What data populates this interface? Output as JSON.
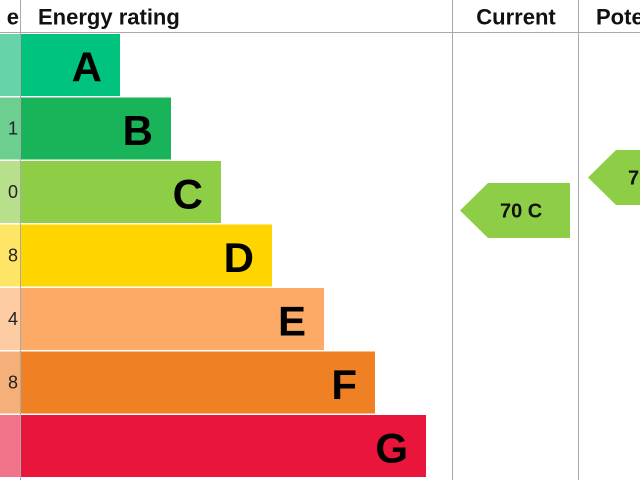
{
  "header": {
    "score": "e",
    "rating": "Energy rating",
    "current": "Current",
    "potential": "Pote"
  },
  "bands": [
    {
      "letter": "A",
      "color": "#00c37d",
      "pale": "#66d3a9",
      "score": null
    },
    {
      "letter": "B",
      "color": "#19b459",
      "pale": "#6ccf8f",
      "score": "1"
    },
    {
      "letter": "C",
      "color": "#8dce46",
      "pale": "#b8e08c",
      "score": "0"
    },
    {
      "letter": "D",
      "color": "#ffd500",
      "pale": "#ffe566",
      "score": "8"
    },
    {
      "letter": "E",
      "color": "#fcaa65",
      "pale": "#fdcca2",
      "score": "4"
    },
    {
      "letter": "F",
      "color": "#ef8023",
      "pale": "#f5b07a",
      "score": "8"
    },
    {
      "letter": "G",
      "color": "#e9153b",
      "pale": "#f17389",
      "score": null
    }
  ],
  "current": {
    "label": "70 C",
    "color": "#8dce46"
  },
  "potential": {
    "label": "7",
    "color": "#8dce46"
  }
}
